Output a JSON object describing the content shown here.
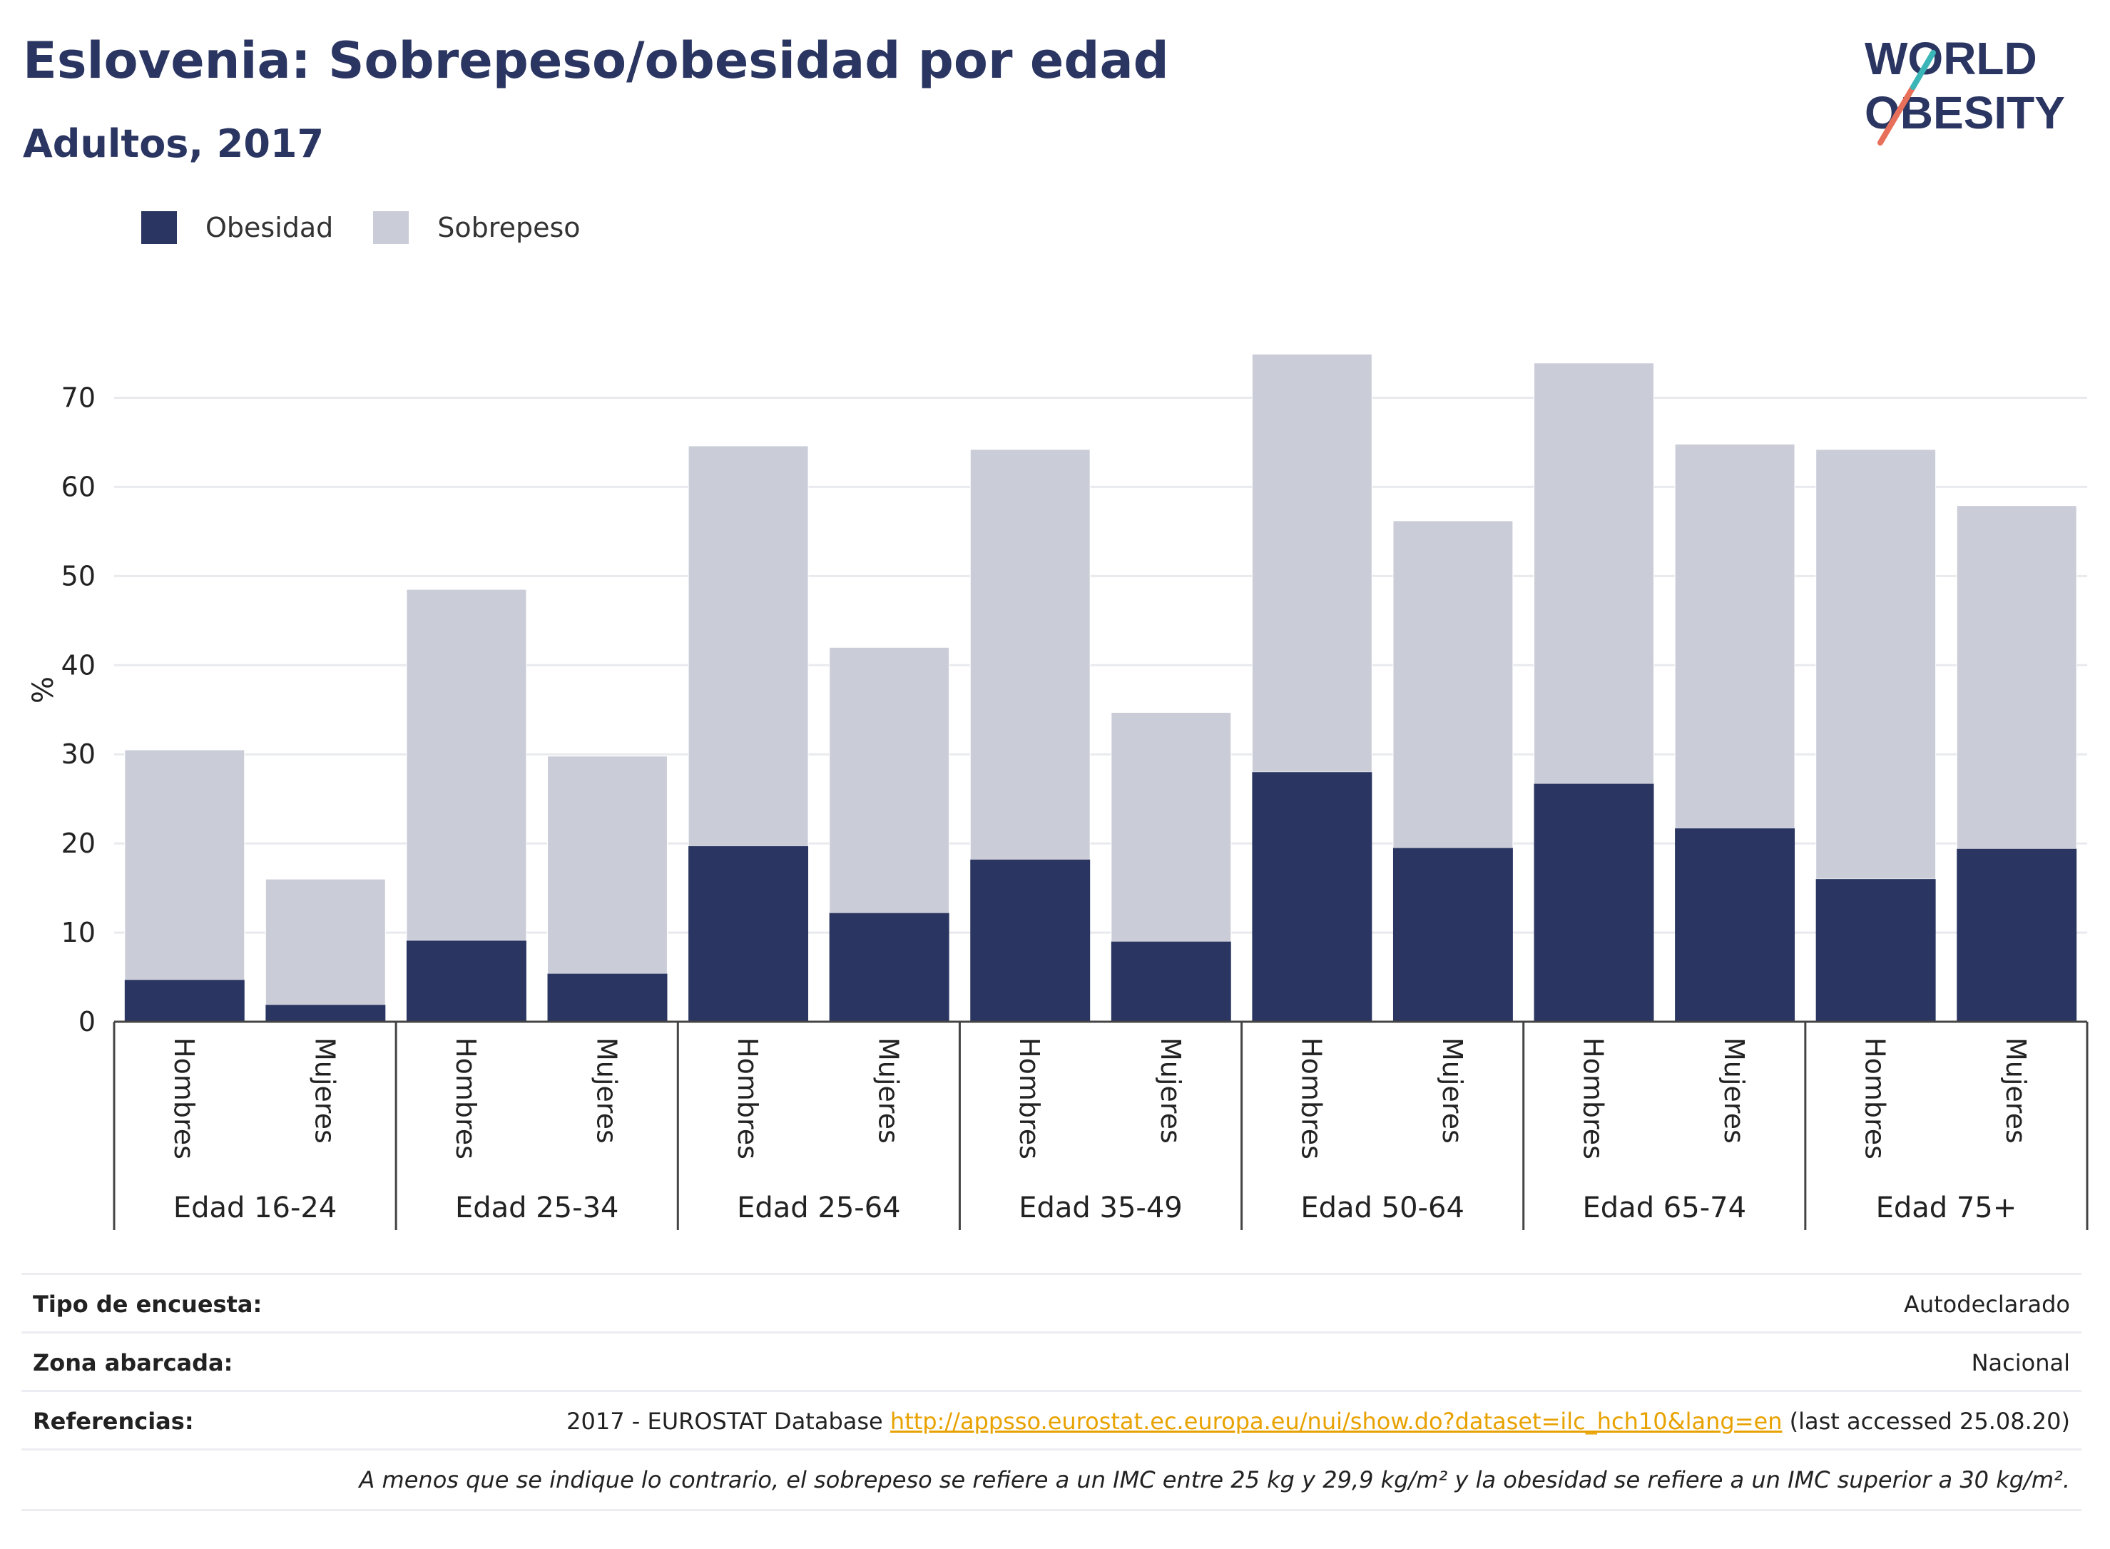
{
  "header": {
    "title": "Eslovenia: Sobrepeso/obesidad por edad",
    "subtitle": "Adultos, 2017"
  },
  "logo": {
    "line1": "WORLD",
    "line2": "OBESITY"
  },
  "colors": {
    "obesity": "#2a3561",
    "overweight": "#cacdd8",
    "title": "#2a3561",
    "link": "#e8a200"
  },
  "chart_data": {
    "type": "bar",
    "stacked": true,
    "ylabel": "%",
    "ylim": [
      0,
      77
    ],
    "yticks": [
      0,
      10,
      20,
      30,
      40,
      50,
      60,
      70
    ],
    "grid": true,
    "legend_position": "top-left",
    "groups": [
      "Edad 16-24",
      "Edad 25-34",
      "Edad 25-64",
      "Edad 35-49",
      "Edad 50-64",
      "Edad 65-74",
      "Edad 75+"
    ],
    "sexes": [
      "Hombres",
      "Mujeres"
    ],
    "categories": [
      "Edad 16-24 Hombres",
      "Edad 16-24 Mujeres",
      "Edad 25-34 Hombres",
      "Edad 25-34 Mujeres",
      "Edad 25-64 Hombres",
      "Edad 25-64 Mujeres",
      "Edad 35-49 Hombres",
      "Edad 35-49 Mujeres",
      "Edad 50-64 Hombres",
      "Edad 50-64 Mujeres",
      "Edad 65-74 Hombres",
      "Edad 65-74 Mujeres",
      "Edad 75+ Hombres",
      "Edad 75+ Mujeres"
    ],
    "series": [
      {
        "name": "Obesidad",
        "values": [
          4.7,
          1.9,
          9.1,
          5.4,
          19.7,
          12.2,
          18.2,
          9.0,
          28.0,
          19.5,
          26.7,
          21.7,
          16.0,
          19.4
        ]
      },
      {
        "name": "Sobrepeso",
        "values": [
          25.8,
          14.1,
          39.4,
          24.4,
          44.9,
          29.8,
          46.0,
          25.7,
          46.9,
          36.7,
          47.2,
          43.1,
          48.2,
          38.5
        ]
      }
    ]
  },
  "info": {
    "survey_type_label": "Tipo de encuesta:",
    "survey_type_value": "Autodeclarado",
    "area_label": "Zona abarcada:",
    "area_value": "Nacional",
    "references_label": "Referencias:",
    "references_prefix": "2017 - EUROSTAT Database ",
    "references_link": "http://appsso.eurostat.ec.europa.eu/nui/show.do?dataset=ilc_hch10&lang=en",
    "references_suffix": " (last accessed 25.08.20)",
    "note": "A menos que se indique lo contrario, el sobrepeso se refiere a un IMC entre 25 kg y 29,9 kg/m² y la obesidad se refiere a un IMC superior a 30 kg/m²."
  }
}
